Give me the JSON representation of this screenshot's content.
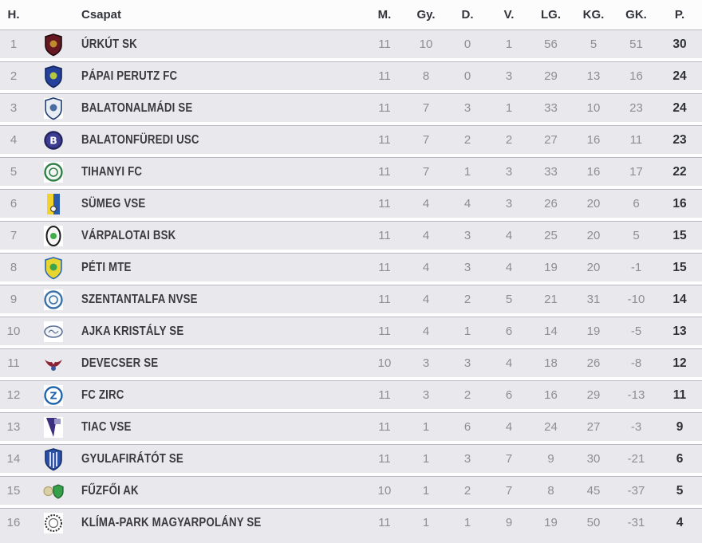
{
  "colors": {
    "row_bg": "#e9e9ed",
    "row_separator": "#b8b9c0",
    "gap": "#ffffff",
    "muted_text": "#8d8d94",
    "dark_text": "#33343a"
  },
  "chart_data": {
    "type": "table",
    "columns": [
      "H.",
      "Csapat",
      "M.",
      "Gy.",
      "D.",
      "V.",
      "LG.",
      "KG.",
      "GK.",
      "P."
    ],
    "rows": [
      {
        "pos": 1,
        "team": "ÚRKÚT SK",
        "played": 11,
        "wins": 10,
        "draws": 0,
        "losses": 1,
        "goals_for": 56,
        "goals_against": 5,
        "goal_diff": 51,
        "points": 30,
        "crest": {
          "shape": "shield",
          "colors": [
            "#651722",
            "#20090d",
            "#c08a2f"
          ]
        }
      },
      {
        "pos": 2,
        "team": "PÁPAI PERUTZ FC",
        "played": 11,
        "wins": 8,
        "draws": 0,
        "losses": 3,
        "goals_for": 29,
        "goals_against": 13,
        "goal_diff": 16,
        "points": 24,
        "crest": {
          "shape": "shield",
          "colors": [
            "#24409a",
            "#14265e",
            "#b5c93e"
          ]
        }
      },
      {
        "pos": 3,
        "team": "BALATONALMÁDI SE",
        "played": 11,
        "wins": 7,
        "draws": 3,
        "losses": 1,
        "goals_for": 33,
        "goals_against": 10,
        "goal_diff": 23,
        "points": 24,
        "crest": {
          "shape": "shield",
          "colors": [
            "#e8edf4",
            "#1d3a6e",
            "#4a6da0"
          ],
          "tile": true
        }
      },
      {
        "pos": 4,
        "team": "BALATONFÜREDI USC",
        "played": 11,
        "wins": 7,
        "draws": 2,
        "losses": 2,
        "goals_for": 27,
        "goals_against": 16,
        "goal_diff": 11,
        "points": 23,
        "crest": {
          "shape": "circle",
          "colors": [
            "#3d3d94",
            "#23235e",
            "#ffffff"
          ],
          "letter": "B"
        }
      },
      {
        "pos": 5,
        "team": "TIHANYI FC",
        "played": 11,
        "wins": 7,
        "draws": 1,
        "losses": 3,
        "goals_for": 33,
        "goals_against": 16,
        "goal_diff": 17,
        "points": 22,
        "crest": {
          "shape": "circle",
          "colors": [
            "#f4f7f4",
            "#2e7f46",
            "#2e7f46"
          ],
          "tile": true
        }
      },
      {
        "pos": 6,
        "team": "SÜMEG VSE",
        "played": 11,
        "wins": 4,
        "draws": 4,
        "losses": 3,
        "goals_for": 26,
        "goals_against": 20,
        "goal_diff": 6,
        "points": 16,
        "crest": {
          "shape": "rect",
          "colors": [
            "#f2d32b",
            "#2a5cab",
            "#333333"
          ]
        }
      },
      {
        "pos": 7,
        "team": "VÁRPALOTAI BSK",
        "played": 11,
        "wins": 4,
        "draws": 3,
        "losses": 4,
        "goals_for": 25,
        "goals_against": 20,
        "goal_diff": 5,
        "points": 15,
        "crest": {
          "shape": "oval",
          "colors": [
            "#f6f6f6",
            "#1b1b1b",
            "#3fae4a"
          ],
          "tile": true
        }
      },
      {
        "pos": 8,
        "team": "PÉTI MTE",
        "played": 11,
        "wins": 4,
        "draws": 3,
        "losses": 4,
        "goals_for": 19,
        "goals_against": 20,
        "goal_diff": -1,
        "points": 15,
        "crest": {
          "shape": "shield",
          "colors": [
            "#e9d52f",
            "#2b6ab2",
            "#3da44e"
          ]
        }
      },
      {
        "pos": 9,
        "team": "SZENTANTALFA NVSE",
        "played": 11,
        "wins": 4,
        "draws": 2,
        "losses": 5,
        "goals_for": 21,
        "goals_against": 31,
        "goal_diff": -10,
        "points": 14,
        "crest": {
          "shape": "circle",
          "colors": [
            "#f5f8fb",
            "#3a70a8",
            "#3a70a8"
          ],
          "tile": true
        }
      },
      {
        "pos": 10,
        "team": "AJKA KRISTÁLY SE",
        "played": 11,
        "wins": 4,
        "draws": 1,
        "losses": 6,
        "goals_for": 14,
        "goals_against": 19,
        "goal_diff": -5,
        "points": 13,
        "crest": {
          "shape": "oval-h",
          "colors": [
            "#f3f5f8",
            "#5a6f96",
            "#5a6f96"
          ],
          "tile": true
        }
      },
      {
        "pos": 11,
        "team": "DEVECSER SE",
        "played": 10,
        "wins": 3,
        "draws": 3,
        "losses": 4,
        "goals_for": 18,
        "goals_against": 26,
        "goal_diff": -8,
        "points": 12,
        "crest": {
          "shape": "bird",
          "colors": [
            "#8b2332",
            "#1c1c1c",
            "#3a57a0"
          ]
        }
      },
      {
        "pos": 12,
        "team": "FC ZIRC",
        "played": 11,
        "wins": 3,
        "draws": 2,
        "losses": 6,
        "goals_for": 16,
        "goals_against": 29,
        "goal_diff": -13,
        "points": 11,
        "crest": {
          "shape": "circle",
          "colors": [
            "#ffffff",
            "#1f64ab",
            "#1f64ab"
          ],
          "letter": "Z",
          "tile": true
        }
      },
      {
        "pos": 13,
        "team": "TIAC VSE",
        "played": 11,
        "wins": 1,
        "draws": 6,
        "losses": 4,
        "goals_for": 24,
        "goals_against": 27,
        "goal_diff": -3,
        "points": 9,
        "crest": {
          "shape": "triangle",
          "colors": [
            "#ffffff",
            "#3b2f82",
            "#9a97c9"
          ],
          "tile": true
        }
      },
      {
        "pos": 14,
        "team": "GYULAFIRÁTÓT SE",
        "played": 11,
        "wins": 1,
        "draws": 3,
        "losses": 7,
        "goals_for": 9,
        "goals_against": 30,
        "goal_diff": -21,
        "points": 6,
        "crest": {
          "shape": "shield-stripes",
          "colors": [
            "#2a51a5",
            "#16306b",
            "#ffffff"
          ]
        }
      },
      {
        "pos": 15,
        "team": "FŰZFŐI AK",
        "played": 10,
        "wins": 1,
        "draws": 2,
        "losses": 7,
        "goals_for": 8,
        "goals_against": 45,
        "goal_diff": -37,
        "points": 5,
        "crest": {
          "shape": "double",
          "colors": [
            "#d9d0a5",
            "#34a04a",
            "#1d5c2c"
          ]
        }
      },
      {
        "pos": 16,
        "team": "KLÍMA-PARK MAGYARPOLÁNY SE",
        "played": 11,
        "wins": 1,
        "draws": 1,
        "losses": 9,
        "goals_for": 19,
        "goals_against": 50,
        "goal_diff": -31,
        "points": 4,
        "crest": {
          "shape": "laurel",
          "colors": [
            "#ffffff",
            "#2b2b2b",
            "#666666"
          ],
          "tile": true
        }
      }
    ]
  }
}
